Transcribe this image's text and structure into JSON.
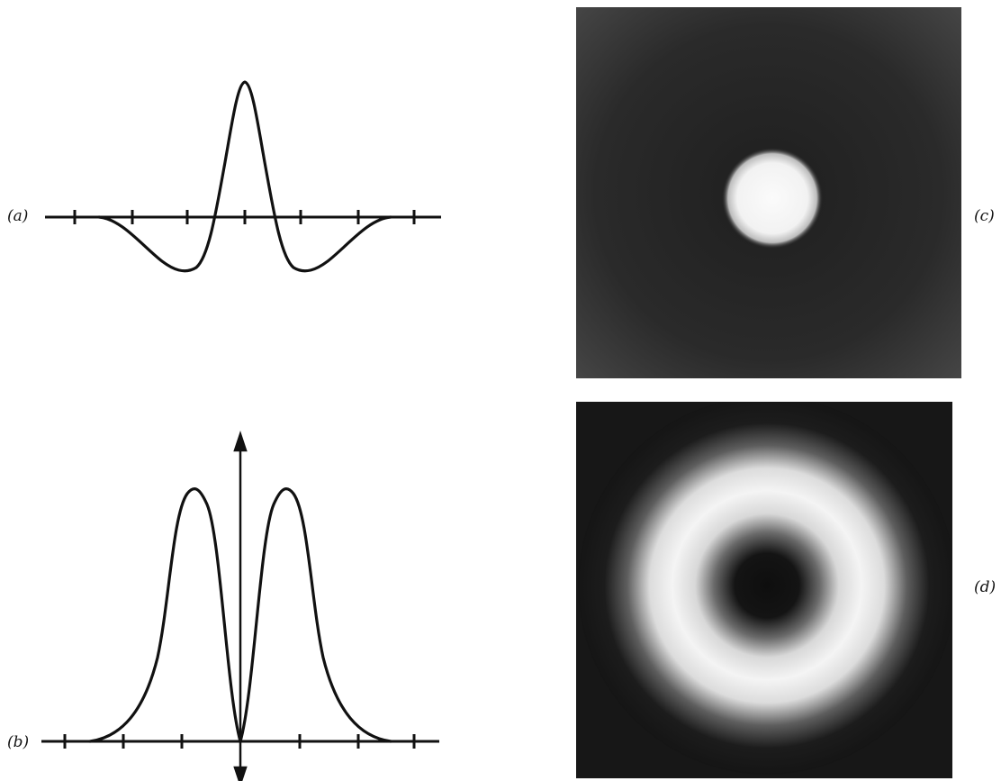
{
  "figure": {
    "panels": [
      {
        "id": "a",
        "label": "(a)",
        "kind": "profile",
        "shape": "mexican-hat (negative lobes, central positive peak)"
      },
      {
        "id": "b",
        "label": "(b)",
        "kind": "profile",
        "shape": "two positive peaks, zero at center, vertical double-arrow axis"
      },
      {
        "id": "c",
        "label": "(c)",
        "kind": "intensity-image",
        "shape": "bright central disk on dark background"
      },
      {
        "id": "d",
        "label": "(d)",
        "kind": "intensity-image",
        "shape": "bright ring with dark center on dark background"
      }
    ],
    "colors": {
      "ink": "#111111",
      "background": "#ffffff",
      "image_dark": "#2a2a2a",
      "image_bright": "#fafafa"
    }
  }
}
